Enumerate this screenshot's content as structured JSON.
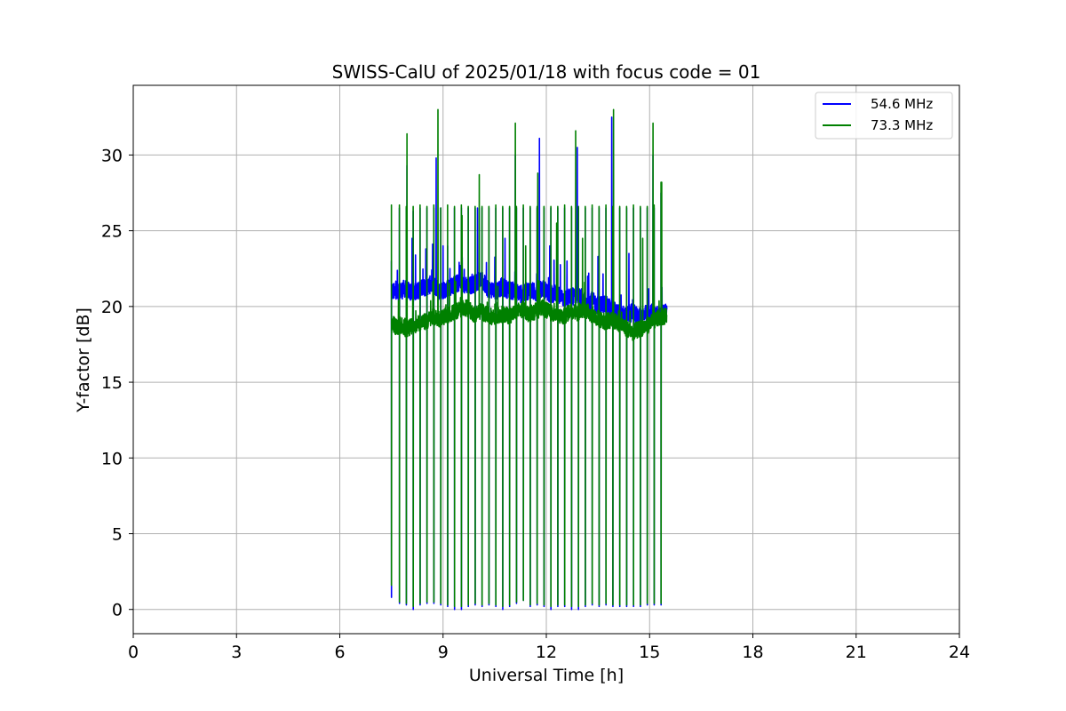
{
  "chart_data": {
    "type": "line",
    "title": "SWISS-CalU of 2025/01/18 with focus code = 01",
    "xlabel": "Universal Time [h]",
    "ylabel": "Y-factor [dB]",
    "xlim": [
      0,
      24
    ],
    "ylim": [
      -1.6,
      34.6
    ],
    "xticks": [
      0,
      3,
      6,
      9,
      12,
      15,
      18,
      21,
      24
    ],
    "yticks": [
      0,
      5,
      10,
      15,
      20,
      25,
      30
    ],
    "grid": true,
    "legend_position": "top-right",
    "series": [
      {
        "name": "54.6 MHz",
        "color": "#0000ff",
        "x": [
          7.5,
          7.55,
          7.65,
          7.75,
          7.9,
          8.1,
          8.3,
          8.5,
          8.7,
          8.9,
          9.1,
          9.3,
          9.5,
          9.7,
          9.9,
          10.1,
          10.3,
          10.5,
          10.7,
          10.9,
          11.1,
          11.3,
          11.5,
          11.7,
          11.9,
          12.1,
          12.3,
          12.5,
          12.7,
          12.9,
          13.1,
          13.3,
          13.5,
          13.7,
          13.9,
          14.1,
          14.3,
          14.5,
          14.7,
          14.9,
          15.1,
          15.3,
          15.5
        ],
        "y": [
          21.0,
          21.0,
          20.8,
          21.0,
          21.2,
          20.9,
          21.1,
          21.3,
          21.5,
          21.0,
          21.2,
          21.4,
          21.6,
          21.3,
          21.5,
          21.8,
          21.2,
          21.0,
          21.3,
          21.1,
          21.0,
          20.8,
          21.1,
          20.9,
          21.2,
          20.8,
          20.9,
          20.5,
          20.6,
          20.8,
          20.3,
          20.4,
          20.1,
          20.2,
          19.8,
          19.6,
          19.4,
          19.6,
          19.3,
          19.5,
          19.6,
          19.4,
          19.6
        ]
      },
      {
        "name": "73.3 MHz",
        "color": "#008000",
        "x": [
          7.5,
          7.55,
          7.65,
          7.75,
          7.9,
          8.1,
          8.3,
          8.5,
          8.7,
          8.9,
          9.1,
          9.3,
          9.5,
          9.7,
          9.9,
          10.1,
          10.3,
          10.5,
          10.7,
          10.9,
          11.1,
          11.3,
          11.5,
          11.7,
          11.9,
          12.1,
          12.3,
          12.5,
          12.7,
          12.9,
          13.1,
          13.3,
          13.5,
          13.7,
          13.9,
          14.1,
          14.3,
          14.5,
          14.7,
          14.9,
          15.1,
          15.3,
          15.5
        ],
        "y": [
          18.8,
          18.9,
          18.6,
          18.8,
          18.5,
          18.7,
          18.9,
          19.0,
          19.3,
          19.2,
          19.4,
          19.6,
          19.8,
          19.9,
          19.5,
          19.7,
          19.4,
          19.3,
          19.5,
          19.4,
          19.6,
          19.8,
          19.5,
          19.7,
          19.9,
          19.6,
          19.4,
          19.3,
          19.7,
          19.6,
          19.8,
          19.5,
          19.2,
          19.0,
          19.1,
          18.9,
          18.6,
          18.3,
          18.5,
          18.7,
          19.0,
          19.3,
          19.4
        ]
      }
    ],
    "calibration_spikes": {
      "times": [
        7.5,
        7.73,
        7.93,
        8.13,
        8.33,
        8.53,
        8.73,
        8.93,
        9.13,
        9.33,
        9.53,
        9.73,
        9.93,
        10.13,
        10.33,
        10.53,
        10.73,
        10.93,
        11.13,
        11.33,
        11.53,
        11.73,
        11.93,
        12.13,
        12.33,
        12.53,
        12.73,
        12.93,
        13.13,
        13.33,
        13.53,
        13.73,
        13.93,
        14.13,
        14.33,
        14.53,
        14.73,
        14.93,
        15.13,
        15.33
      ],
      "high_54_6": [
        23.0,
        26.5,
        26.5,
        26.3,
        26.5,
        26.5,
        26.5,
        26.5,
        24.0,
        26.5,
        26.5,
        26.5,
        26.5,
        26.5,
        26.5,
        26.5,
        26.5,
        26.5,
        26.5,
        26.5,
        26.5,
        26.5,
        26.5,
        26.5,
        26.5,
        26.5,
        26.5,
        26.5,
        26.5,
        26.5,
        26.5,
        26.5,
        26.5,
        26.5,
        26.5,
        26.5,
        26.5,
        26.5,
        26.5,
        27.5
      ],
      "high_73_3": [
        26.7,
        26.7,
        26.6,
        26.6,
        26.7,
        26.6,
        26.7,
        26.5,
        26.7,
        26.6,
        26.7,
        26.6,
        26.6,
        26.6,
        26.6,
        26.7,
        26.6,
        26.6,
        26.6,
        26.7,
        26.6,
        26.6,
        26.6,
        26.6,
        26.6,
        26.7,
        26.6,
        26.6,
        26.6,
        26.7,
        26.6,
        26.7,
        26.6,
        26.6,
        26.6,
        26.7,
        26.6,
        26.6,
        26.7,
        28.2
      ],
      "low_54_6": [
        0.8,
        0.4,
        0.3,
        0.0,
        0.3,
        0.4,
        0.4,
        0.3,
        0.2,
        0.0,
        0.0,
        0.2,
        0.3,
        0.2,
        0.3,
        0.2,
        0.0,
        0.2,
        0.4,
        0.6,
        0.2,
        0.3,
        0.2,
        0.0,
        0.2,
        0.2,
        0.0,
        0.0,
        0.2,
        0.3,
        0.2,
        0.3,
        0.2,
        0.2,
        0.2,
        0.2,
        0.2,
        0.3,
        0.3,
        0.3
      ],
      "low_73_3": [
        1.6,
        0.5,
        0.4,
        0.2,
        0.4,
        0.5,
        0.5,
        0.4,
        0.3,
        0.2,
        0.2,
        0.3,
        0.4,
        0.3,
        0.4,
        0.3,
        0.2,
        0.3,
        0.5,
        0.6,
        0.3,
        0.4,
        0.3,
        0.2,
        0.3,
        0.3,
        0.2,
        0.2,
        0.3,
        0.4,
        0.3,
        0.4,
        0.3,
        0.3,
        0.3,
        0.3,
        0.3,
        0.4,
        0.4,
        0.4
      ]
    },
    "bursts_54_6": [
      [
        7.95,
        29.3
      ],
      [
        8.1,
        24.5
      ],
      [
        8.2,
        23.4
      ],
      [
        8.5,
        23.8
      ],
      [
        8.8,
        29.8
      ],
      [
        9.0,
        24.0
      ],
      [
        9.2,
        22.5
      ],
      [
        9.5,
        22.7
      ],
      [
        10.0,
        26.5
      ],
      [
        10.3,
        21.5
      ],
      [
        10.8,
        24.5
      ],
      [
        11.1,
        30.0
      ],
      [
        11.8,
        31.1
      ],
      [
        12.1,
        24.0
      ],
      [
        12.6,
        23.0
      ],
      [
        12.9,
        30.5
      ],
      [
        13.2,
        22.0
      ],
      [
        13.5,
        23.3
      ],
      [
        13.9,
        32.5
      ],
      [
        14.4,
        23.5
      ],
      [
        15.1,
        30.0
      ]
    ],
    "bursts_73_3": [
      [
        7.95,
        31.4
      ],
      [
        8.85,
        33.0
      ],
      [
        9.55,
        26.0
      ],
      [
        10.05,
        28.7
      ],
      [
        11.1,
        32.1
      ],
      [
        11.4,
        24.0
      ],
      [
        11.75,
        28.8
      ],
      [
        12.3,
        25.5
      ],
      [
        12.85,
        31.6
      ],
      [
        13.05,
        24.5
      ],
      [
        13.95,
        33.0
      ],
      [
        14.8,
        24.5
      ],
      [
        15.1,
        32.1
      ],
      [
        15.35,
        28.2
      ]
    ]
  }
}
